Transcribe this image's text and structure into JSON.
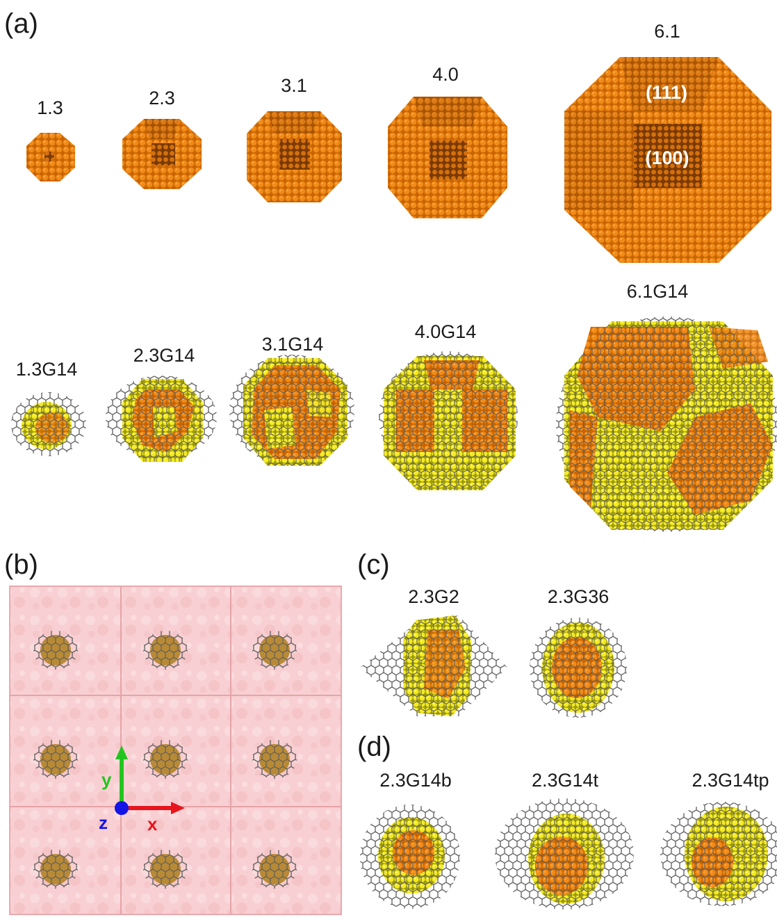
{
  "panels": {
    "a": {
      "letter": "(a)",
      "bare": [
        {
          "label": "1.3"
        },
        {
          "label": "2.3"
        },
        {
          "label": "3.1"
        },
        {
          "label": "4.0"
        },
        {
          "label": "6.1",
          "facets": [
            "(111)",
            "(100)"
          ]
        }
      ],
      "coated": [
        {
          "label": "1.3G14"
        },
        {
          "label": "2.3G14"
        },
        {
          "label": "3.1G14"
        },
        {
          "label": "4.0G14"
        },
        {
          "label": "6.1G14"
        }
      ]
    },
    "b": {
      "letter": "(b)",
      "axes": {
        "x": "x",
        "y": "y",
        "z": "z"
      }
    },
    "c": {
      "letter": "(c)",
      "items": [
        {
          "label": "2.3G2"
        },
        {
          "label": "2.3G36"
        }
      ]
    },
    "d": {
      "letter": "(d)",
      "items": [
        {
          "label": "2.3G14b"
        },
        {
          "label": "2.3G14t"
        },
        {
          "label": "2.3G14tp"
        }
      ]
    }
  },
  "colors": {
    "copper": "#e07a10",
    "copper_dark": "#a85400",
    "yellow": "#f2e81a",
    "graphene": "#6e6e6e",
    "water_box": "#f7c9cc",
    "axis_x": "#e8141c",
    "axis_y": "#22c51e",
    "axis_z": "#1414e6"
  }
}
